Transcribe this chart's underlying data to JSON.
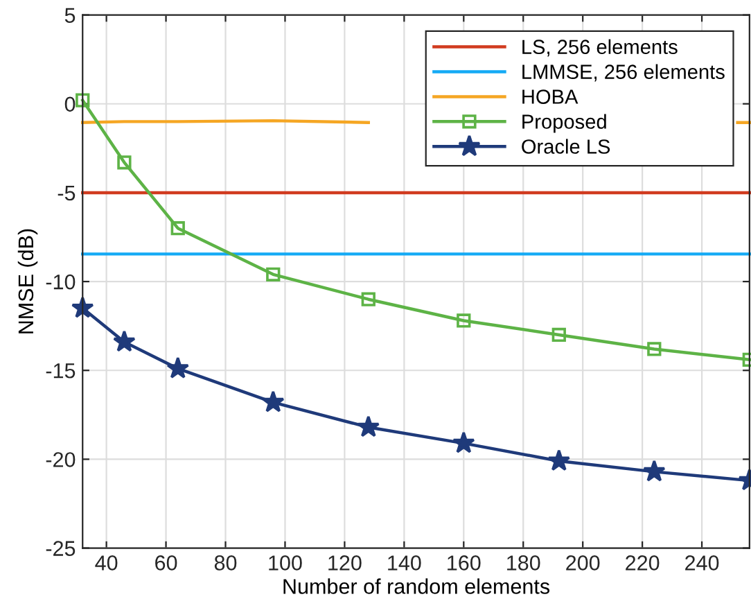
{
  "chart_data": {
    "type": "line",
    "xlabel": "Number of random elements",
    "ylabel": "NMSE (dB)",
    "x": [
      32,
      46,
      64,
      96,
      128,
      160,
      192,
      224,
      256
    ],
    "series": [
      {
        "name": "LS, 256 elements",
        "color": "#d13b1f",
        "marker": "none",
        "values": [
          -5,
          -5,
          -5,
          -5,
          -5,
          -5,
          -5,
          -5,
          -5
        ]
      },
      {
        "name": "LMMSE, 256 elements",
        "color": "#14aaf5",
        "marker": "none",
        "values": [
          -8.45,
          -8.45,
          -8.45,
          -8.45,
          -8.45,
          -8.45,
          -8.45,
          -8.45,
          -8.45
        ]
      },
      {
        "name": "HOBA",
        "color": "#f5a623",
        "marker": "none",
        "x": [
          32,
          46,
          64,
          96,
          128,
          160,
          192,
          224,
          252,
          256
        ],
        "values": [
          -1.05,
          -1.0,
          -1.0,
          -0.95,
          -1.05,
          null,
          null,
          null,
          -1.05,
          -1.05
        ]
      },
      {
        "name": "Proposed",
        "color": "#5db346",
        "marker": "square",
        "values": [
          0.2,
          -3.3,
          -7.0,
          -9.6,
          -11.0,
          -12.2,
          -13.0,
          -13.8,
          -14.4
        ]
      },
      {
        "name": "Oracle LS",
        "color": "#1f3a7a",
        "marker": "star",
        "values": [
          -11.5,
          -13.4,
          -14.9,
          -16.8,
          -18.2,
          -19.1,
          -20.1,
          -20.7,
          -21.2
        ]
      }
    ],
    "xlim": [
      32,
      256
    ],
    "xticks": [
      40,
      60,
      80,
      100,
      120,
      140,
      160,
      180,
      200,
      220,
      240
    ],
    "ylim": [
      -25,
      5
    ],
    "yticks": [
      -25,
      -20,
      -15,
      -10,
      -5,
      0,
      5
    ],
    "grid": true,
    "legend": "top right",
    "line_style": "solid"
  }
}
